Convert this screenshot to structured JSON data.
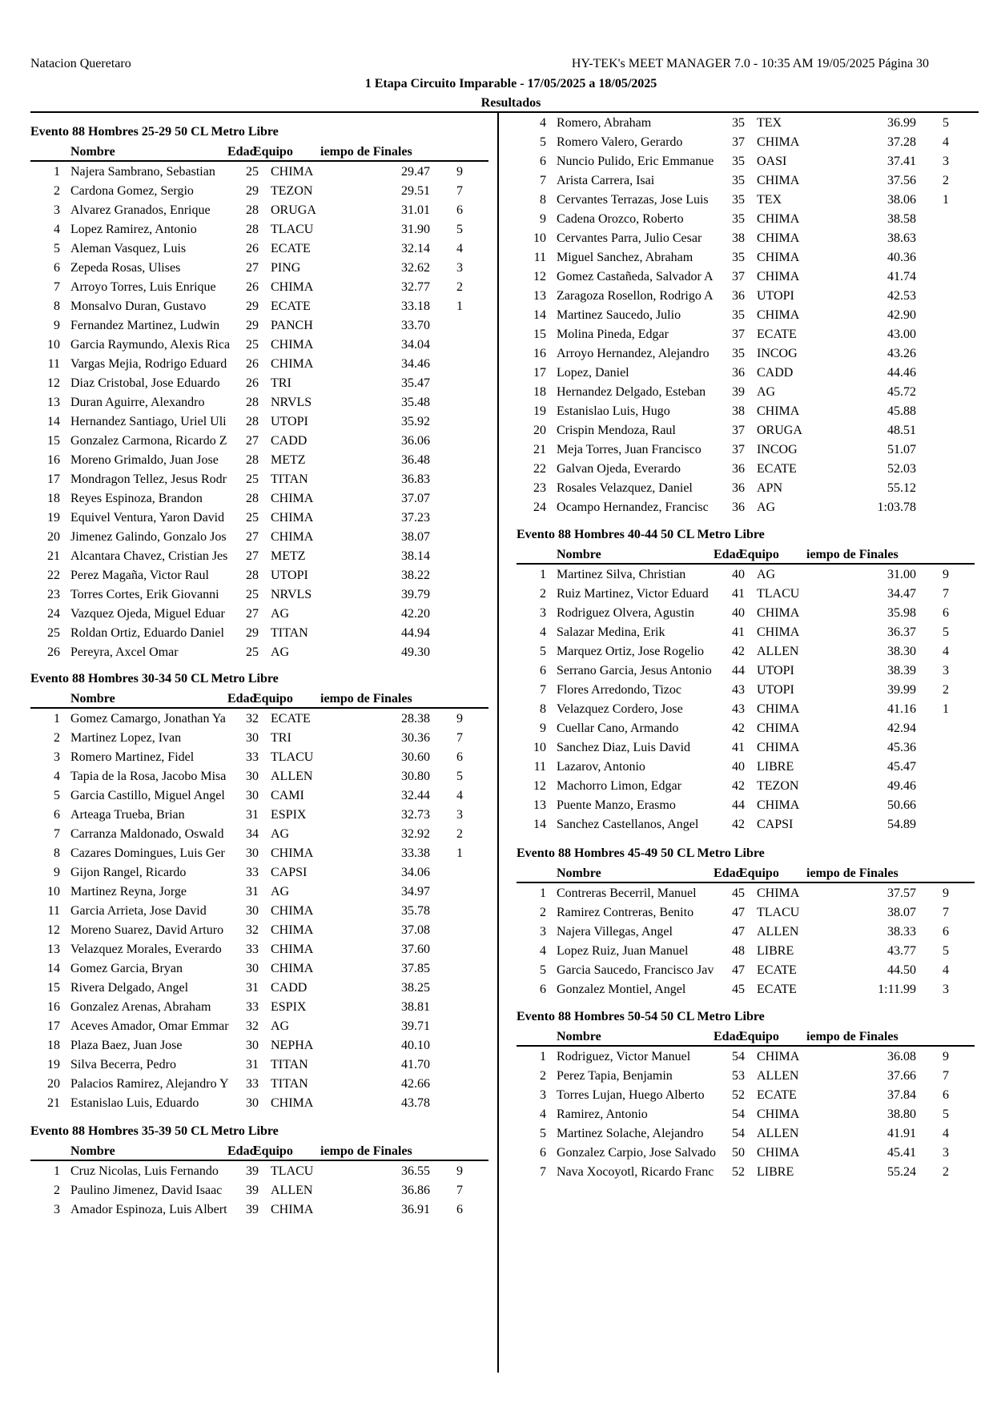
{
  "header": {
    "left": "Natacion Queretaro",
    "right": "HY-TEK's MEET MANAGER 7.0 - 10:35 AM 19/05/2025 Página 30",
    "title": "1 Etapa Circuito Imparable - 17/05/2025 a 18/05/2025",
    "subtitle": "Resultados"
  },
  "sections": [
    {
      "title": "Evento 88 Hombres 25-29 50 CL Metro Libre",
      "columns": [
        "Nombre",
        "Edad",
        "Equipo",
        "iempo de Finales"
      ],
      "rows": [
        [
          1,
          "Najera Sambrano, Sebastian",
          25,
          "CHIMA",
          "29.47",
          9
        ],
        [
          2,
          "Cardona Gomez, Sergio",
          29,
          "TEZON",
          "29.51",
          7
        ],
        [
          3,
          "Alvarez Granados, Enrique",
          28,
          "ORUGA",
          "31.01",
          6
        ],
        [
          4,
          "Lopez Ramirez, Antonio",
          28,
          "TLACU",
          "31.90",
          5
        ],
        [
          5,
          "Aleman Vasquez, Luis",
          26,
          "ECATE",
          "32.14",
          4
        ],
        [
          6,
          "Zepeda Rosas, Ulises",
          27,
          "PING",
          "32.62",
          3
        ],
        [
          7,
          "Arroyo Torres, Luis Enrique",
          26,
          "CHIMA",
          "32.77",
          2
        ],
        [
          8,
          "Monsalvo Duran, Gustavo",
          29,
          "ECATE",
          "33.18",
          1
        ],
        [
          9,
          "Fernandez Martinez, Ludwin",
          29,
          "PANCH",
          "33.70"
        ],
        [
          10,
          "Garcia Raymundo, Alexis Rica",
          25,
          "CHIMA",
          "34.04"
        ],
        [
          11,
          "Vargas Mejia, Rodrigo Eduard",
          26,
          "CHIMA",
          "34.46"
        ],
        [
          12,
          "Diaz Cristobal, Jose Eduardo",
          26,
          "TRI",
          "35.47"
        ],
        [
          13,
          "Duran Aguirre, Alexandro",
          28,
          "NRVLS",
          "35.48"
        ],
        [
          14,
          "Hernandez Santiago, Uriel Uli",
          28,
          "UTOPI",
          "35.92"
        ],
        [
          15,
          "Gonzalez Carmona, Ricardo Z",
          27,
          "CADD",
          "36.06"
        ],
        [
          16,
          "Moreno Grimaldo, Juan Jose",
          28,
          "METZ",
          "36.48"
        ],
        [
          17,
          "Mondragon Tellez, Jesus Rodr",
          25,
          "TITAN",
          "36.83"
        ],
        [
          18,
          "Reyes Espinoza, Brandon",
          28,
          "CHIMA",
          "37.07"
        ],
        [
          19,
          "Equivel Ventura, Yaron David",
          25,
          "CHIMA",
          "37.23"
        ],
        [
          20,
          "Jimenez Galindo, Gonzalo Jos",
          27,
          "CHIMA",
          "38.07"
        ],
        [
          21,
          "Alcantara Chavez, Cristian Jes",
          27,
          "METZ",
          "38.14"
        ],
        [
          22,
          "Perez Magaña, Victor Raul",
          28,
          "UTOPI",
          "38.22"
        ],
        [
          23,
          "Torres Cortes, Erik Giovanni",
          25,
          "NRVLS",
          "39.79"
        ],
        [
          24,
          "Vazquez Ojeda, Miguel Eduar",
          27,
          "AG",
          "42.20"
        ],
        [
          25,
          "Roldan Ortiz, Eduardo Daniel",
          29,
          "TITAN",
          "44.94"
        ],
        [
          26,
          "Pereyra, Axcel Omar",
          25,
          "AG",
          "49.30"
        ]
      ]
    },
    {
      "title": "Evento 88 Hombres 30-34 50 CL Metro Libre",
      "columns": [
        "Nombre",
        "Edad",
        "Equipo",
        "iempo de Finales"
      ],
      "rows": [
        [
          1,
          "Gomez Camargo, Jonathan Ya",
          32,
          "ECATE",
          "28.38",
          9
        ],
        [
          2,
          "Martinez Lopez, Ivan",
          30,
          "TRI",
          "30.36",
          7
        ],
        [
          3,
          "Romero Martinez, Fidel",
          33,
          "TLACU",
          "30.60",
          6
        ],
        [
          4,
          "Tapia de la Rosa, Jacobo Misa",
          30,
          "ALLEN",
          "30.80",
          5
        ],
        [
          5,
          "Garcia Castillo, Miguel Angel",
          30,
          "CAMI",
          "32.44",
          4
        ],
        [
          6,
          "Arteaga Trueba, Brian",
          31,
          "ESPIX",
          "32.73",
          3
        ],
        [
          7,
          "Carranza Maldonado, Oswald",
          34,
          "AG",
          "32.92",
          2
        ],
        [
          8,
          "Cazares Domingues, Luis Ger",
          30,
          "CHIMA",
          "33.38",
          1
        ],
        [
          9,
          "Gijon Rangel, Ricardo",
          33,
          "CAPSI",
          "34.06"
        ],
        [
          10,
          "Martinez Reyna, Jorge",
          31,
          "AG",
          "34.97"
        ],
        [
          11,
          "Garcia Arrieta, Jose David",
          30,
          "CHIMA",
          "35.78"
        ],
        [
          12,
          "Moreno Suarez, David Arturo",
          32,
          "CHIMA",
          "37.08"
        ],
        [
          13,
          "Velazquez Morales, Everardo",
          33,
          "CHIMA",
          "37.60"
        ],
        [
          14,
          "Gomez Garcia, Bryan",
          30,
          "CHIMA",
          "37.85"
        ],
        [
          15,
          "Rivera Delgado, Angel",
          31,
          "CADD",
          "38.25"
        ],
        [
          16,
          "Gonzalez Arenas, Abraham",
          33,
          "ESPIX",
          "38.81"
        ],
        [
          17,
          "Aceves Amador, Omar Emmar",
          32,
          "AG",
          "39.71"
        ],
        [
          18,
          "Plaza Baez, Juan Jose",
          30,
          "NEPHA",
          "40.10"
        ],
        [
          19,
          "Silva Becerra, Pedro",
          31,
          "TITAN",
          "41.70"
        ],
        [
          20,
          "Palacios Ramirez, Alejandro Y",
          33,
          "TITAN",
          "42.66"
        ],
        [
          21,
          "Estanislao Luis, Eduardo",
          30,
          "CHIMA",
          "43.78"
        ]
      ]
    },
    {
      "title": "Evento 88 Hombres 35-39 50 CL Metro Libre",
      "columns": [
        "Nombre",
        "Edad",
        "Equipo",
        "iempo de Finales"
      ],
      "rows": [
        [
          1,
          "Cruz Nicolas, Luis Fernando",
          39,
          "TLACU",
          "36.55",
          9
        ],
        [
          2,
          "Paulino Jimenez, David Isaac",
          39,
          "ALLEN",
          "36.86",
          7
        ],
        [
          3,
          "Amador Espinoza, Luis Albert",
          39,
          "CHIMA",
          "36.91",
          6
        ]
      ]
    },
    {
      "rows": [
        [
          4,
          "Romero, Abraham",
          35,
          "TEX",
          "36.99",
          5
        ],
        [
          5,
          "Romero Valero, Gerardo",
          37,
          "CHIMA",
          "37.28",
          4
        ],
        [
          6,
          "Nuncio Pulido, Eric Emmanue",
          35,
          "OASI",
          "37.41",
          3
        ],
        [
          7,
          "Arista Carrera, Isai",
          35,
          "CHIMA",
          "37.56",
          2
        ],
        [
          8,
          "Cervantes Terrazas, Jose Luis",
          35,
          "TEX",
          "38.06",
          1
        ],
        [
          9,
          "Cadena Orozco, Roberto",
          35,
          "CHIMA",
          "38.58"
        ],
        [
          10,
          "Cervantes Parra, Julio Cesar",
          38,
          "CHIMA",
          "38.63"
        ],
        [
          11,
          "Miguel Sanchez, Abraham",
          35,
          "CHIMA",
          "40.36"
        ],
        [
          12,
          "Gomez Castañeda, Salvador A",
          37,
          "CHIMA",
          "41.74"
        ],
        [
          13,
          "Zaragoza Rosellon, Rodrigo A",
          36,
          "UTOPI",
          "42.53"
        ],
        [
          14,
          "Martinez Saucedo, Julio",
          35,
          "CHIMA",
          "42.90"
        ],
        [
          15,
          "Molina Pineda, Edgar",
          37,
          "ECATE",
          "43.00"
        ],
        [
          16,
          "Arroyo Hernandez, Alejandro",
          35,
          "INCOG",
          "43.26"
        ],
        [
          17,
          "Lopez, Daniel",
          36,
          "CADD",
          "44.46"
        ],
        [
          18,
          "Hernandez Delgado, Esteban",
          39,
          "AG",
          "45.72"
        ],
        [
          19,
          "Estanislao Luis, Hugo",
          38,
          "CHIMA",
          "45.88"
        ],
        [
          20,
          "Crispin Mendoza, Raul",
          37,
          "ORUGA",
          "48.51"
        ],
        [
          21,
          "Meja Torres, Juan Francisco",
          37,
          "INCOG",
          "51.07"
        ],
        [
          22,
          "Galvan Ojeda, Everardo",
          36,
          "ECATE",
          "52.03"
        ],
        [
          23,
          "Rosales Velazquez, Daniel",
          36,
          "APN",
          "55.12"
        ],
        [
          24,
          "Ocampo Hernandez, Francisc",
          36,
          "AG",
          "1:03.78"
        ]
      ]
    },
    {
      "title": "Evento 88 Hombres 40-44 50 CL Metro Libre",
      "columns": [
        "Nombre",
        "Edad",
        "Equipo",
        "iempo de Finales"
      ],
      "rows": [
        [
          1,
          "Martinez Silva, Christian",
          40,
          "AG",
          "31.00",
          9
        ],
        [
          2,
          "Ruiz Martinez, Victor Eduard",
          41,
          "TLACU",
          "34.47",
          7
        ],
        [
          3,
          "Rodriguez Olvera, Agustin",
          40,
          "CHIMA",
          "35.98",
          6
        ],
        [
          4,
          "Salazar Medina, Erik",
          41,
          "CHIMA",
          "36.37",
          5
        ],
        [
          5,
          "Marquez Ortiz, Jose Rogelio",
          42,
          "ALLEN",
          "38.30",
          4
        ],
        [
          6,
          "Serrano Garcia, Jesus Antonio",
          44,
          "UTOPI",
          "38.39",
          3
        ],
        [
          7,
          "Flores Arredondo, Tizoc",
          43,
          "UTOPI",
          "39.99",
          2
        ],
        [
          8,
          "Velazquez Cordero, Jose",
          43,
          "CHIMA",
          "41.16",
          1
        ],
        [
          9,
          "Cuellar Cano, Armando",
          42,
          "CHIMA",
          "42.94"
        ],
        [
          10,
          "Sanchez Diaz, Luis David",
          41,
          "CHIMA",
          "45.36"
        ],
        [
          11,
          "Lazarov, Antonio",
          40,
          "LIBRE",
          "45.47"
        ],
        [
          12,
          "Machorro Limon, Edgar",
          42,
          "TEZON",
          "49.46"
        ],
        [
          13,
          "Puente Manzo, Erasmo",
          44,
          "CHIMA",
          "50.66"
        ],
        [
          14,
          "Sanchez Castellanos, Angel",
          42,
          "CAPSI",
          "54.89"
        ]
      ]
    },
    {
      "title": "Evento 88 Hombres 45-49 50 CL Metro Libre",
      "columns": [
        "Nombre",
        "Edad",
        "Equipo",
        "iempo de Finales"
      ],
      "rows": [
        [
          1,
          "Contreras Becerril, Manuel",
          45,
          "CHIMA",
          "37.57",
          9
        ],
        [
          2,
          "Ramirez Contreras, Benito",
          47,
          "TLACU",
          "38.07",
          7
        ],
        [
          3,
          "Najera Villegas, Angel",
          47,
          "ALLEN",
          "38.33",
          6
        ],
        [
          4,
          "Lopez Ruiz, Juan Manuel",
          48,
          "LIBRE",
          "43.77",
          5
        ],
        [
          5,
          "Garcia Saucedo, Francisco Jav",
          47,
          "ECATE",
          "44.50",
          4
        ],
        [
          6,
          "Gonzalez Montiel, Angel",
          45,
          "ECATE",
          "1:11.99",
          3
        ]
      ]
    },
    {
      "title": "Evento 88 Hombres 50-54 50 CL Metro Libre",
      "columns": [
        "Nombre",
        "Edad",
        "Equipo",
        "iempo de Finales"
      ],
      "rows": [
        [
          1,
          "Rodriguez, Victor Manuel",
          54,
          "CHIMA",
          "36.08",
          9
        ],
        [
          2,
          "Perez Tapia, Benjamin",
          53,
          "ALLEN",
          "37.66",
          7
        ],
        [
          3,
          "Torres Lujan, Huego Alberto",
          52,
          "ECATE",
          "37.84",
          6
        ],
        [
          4,
          "Ramirez, Antonio",
          54,
          "CHIMA",
          "38.80",
          5
        ],
        [
          5,
          "Martinez Solache, Alejandro",
          54,
          "ALLEN",
          "41.91",
          4
        ],
        [
          6,
          "Gonzalez Carpio, Jose Salvado",
          50,
          "CHIMA",
          "45.41",
          3
        ],
        [
          7,
          "Nava Xocoyotl, Ricardo Franc",
          52,
          "LIBRE",
          "55.24",
          2
        ]
      ]
    }
  ]
}
